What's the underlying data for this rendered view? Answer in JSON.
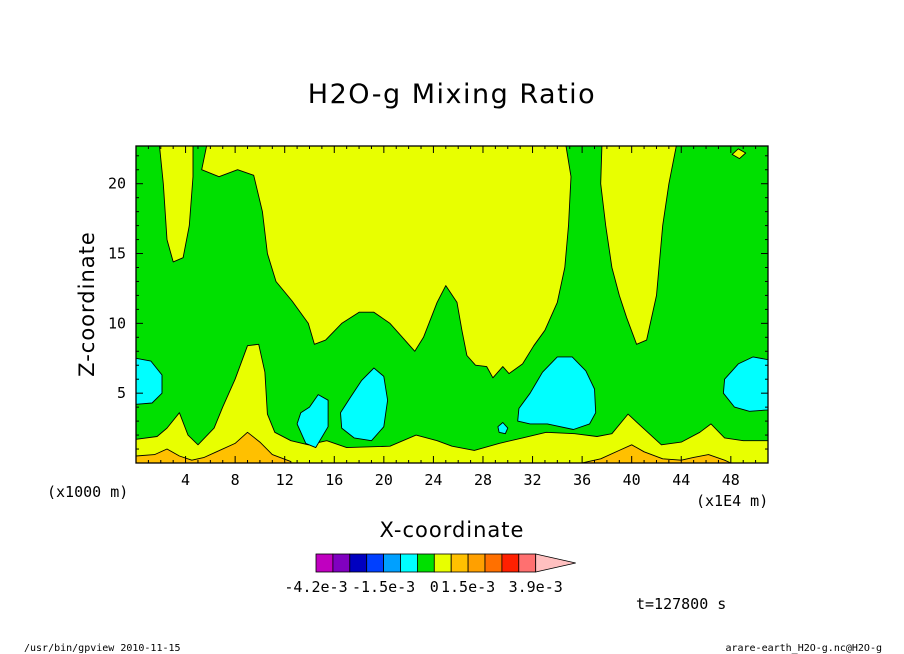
{
  "chart_data": {
    "type": "heatmap",
    "title": "H2O-g Mixing Ratio",
    "xlabel": "X-coordinate",
    "ylabel": "Z-coordinate",
    "x_unit_left": "(x1000 m)",
    "x_unit_right": "(x1E4 m)",
    "x_ticks": [
      "4",
      "8",
      "12",
      "16",
      "20",
      "24",
      "28",
      "32",
      "36",
      "40",
      "44",
      "48"
    ],
    "y_ticks": [
      "5",
      "10",
      "15",
      "20"
    ],
    "xlim": [
      0,
      51
    ],
    "ylim": [
      0,
      22.7
    ],
    "colorbar": {
      "colors": [
        "#c000c0",
        "#8000c0",
        "#0000c0",
        "#0040ff",
        "#00a0ff",
        "#00ffff",
        "#00e000",
        "#e8ff00",
        "#ffc000",
        "#ffa000",
        "#ff7000",
        "#ff2000",
        "#ff7070",
        "#ffc0c0"
      ],
      "labels": [
        "-4.2e-3",
        "-1.5e-3",
        "0",
        "1.5e-3",
        "3.9e-3"
      ],
      "label_levels": [
        -0.0042,
        -0.0015,
        0,
        0.0015,
        0.0039
      ]
    },
    "time_label": "t=127800 s",
    "level_colors": {
      "green": "#00e000",
      "yellow": "#e8ff00",
      "cyan": "#00ffff",
      "orange": "#ffc000"
    },
    "regions": [
      {
        "name": "yellow-plume-left",
        "level": "yellow",
        "points": [
          [
            1.9,
            22.7
          ],
          [
            2.2,
            20
          ],
          [
            2.5,
            16
          ],
          [
            3,
            14.4
          ],
          [
            3.8,
            14.7
          ],
          [
            4.3,
            17
          ],
          [
            4.6,
            20.5
          ],
          [
            4.6,
            22.7
          ]
        ]
      },
      {
        "name": "yellow-upper-center",
        "level": "yellow",
        "points": [
          [
            5.7,
            22.7
          ],
          [
            5.3,
            21
          ],
          [
            6.7,
            20.5
          ],
          [
            8.2,
            21
          ],
          [
            9.5,
            20.6
          ],
          [
            10.2,
            18
          ],
          [
            10.6,
            15
          ],
          [
            11.3,
            13
          ],
          [
            12.6,
            11.6
          ],
          [
            13.9,
            10
          ],
          [
            14.4,
            8.5
          ],
          [
            15.3,
            8.8
          ],
          [
            16.6,
            10
          ],
          [
            18,
            10.8
          ],
          [
            19.2,
            10.8
          ],
          [
            20.5,
            10
          ],
          [
            21.5,
            9
          ],
          [
            22.5,
            8
          ],
          [
            23.2,
            9
          ],
          [
            24.3,
            11.5
          ],
          [
            25,
            12.7
          ],
          [
            25.9,
            11.5
          ],
          [
            26.3,
            9.5
          ],
          [
            26.7,
            7.7
          ],
          [
            27.4,
            7
          ],
          [
            28.3,
            6.9
          ],
          [
            28.8,
            6.1
          ],
          [
            29.6,
            6.9
          ],
          [
            30.1,
            6.4
          ],
          [
            31.2,
            7.1
          ],
          [
            32.1,
            8.4
          ],
          [
            33,
            9.5
          ],
          [
            34,
            11.5
          ],
          [
            34.6,
            14
          ],
          [
            34.9,
            17
          ],
          [
            35.1,
            20.5
          ],
          [
            34.7,
            22.7
          ]
        ]
      },
      {
        "name": "yellow-plume-right",
        "level": "yellow",
        "points": [
          [
            37.6,
            22.7
          ],
          [
            37.5,
            20
          ],
          [
            37.9,
            17
          ],
          [
            38.4,
            14
          ],
          [
            39,
            12
          ],
          [
            39.6,
            10.4
          ],
          [
            40.4,
            8.5
          ],
          [
            41.2,
            8.8
          ],
          [
            42,
            12
          ],
          [
            42.5,
            17
          ],
          [
            43,
            20
          ],
          [
            43.6,
            22.7
          ]
        ]
      },
      {
        "name": "yellow-speck-top-right",
        "level": "yellow",
        "points": [
          [
            48.1,
            22.1
          ],
          [
            48.7,
            21.8
          ],
          [
            49.2,
            22.2
          ],
          [
            48.6,
            22.5
          ]
        ]
      },
      {
        "name": "yellow-band-bottom",
        "level": "yellow",
        "points": [
          [
            0,
            0
          ],
          [
            0,
            1.7
          ],
          [
            1.7,
            1.9
          ],
          [
            2.5,
            2.5
          ],
          [
            3.5,
            3.6
          ],
          [
            4.2,
            2
          ],
          [
            5,
            1.3
          ],
          [
            6.3,
            2.5
          ],
          [
            7,
            4
          ],
          [
            8,
            6
          ],
          [
            9,
            8.4
          ],
          [
            9.9,
            8.5
          ],
          [
            10.4,
            6.5
          ],
          [
            10.6,
            3.5
          ],
          [
            11.2,
            2.2
          ],
          [
            12.5,
            1.6
          ],
          [
            13.9,
            1.3
          ],
          [
            15.4,
            1.6
          ],
          [
            17,
            1.1
          ],
          [
            20.5,
            1.2
          ],
          [
            22.6,
            2
          ],
          [
            24.3,
            1.6
          ],
          [
            25.5,
            1.2
          ],
          [
            27.3,
            0.9
          ],
          [
            29.3,
            1.4
          ],
          [
            31.2,
            1.8
          ],
          [
            33.1,
            2.2
          ],
          [
            35.4,
            2.1
          ],
          [
            37.2,
            1.9
          ],
          [
            38.4,
            2.1
          ],
          [
            39.7,
            3.5
          ],
          [
            40.8,
            2.6
          ],
          [
            42.4,
            1.3
          ],
          [
            44,
            1.5
          ],
          [
            45.5,
            2.2
          ],
          [
            46.4,
            2.8
          ],
          [
            47.5,
            1.8
          ],
          [
            49,
            1.6
          ],
          [
            51,
            1.6
          ],
          [
            51,
            0
          ]
        ]
      },
      {
        "name": "orange-low-left",
        "level": "orange",
        "points": [
          [
            0,
            0
          ],
          [
            0,
            0.5
          ],
          [
            1.5,
            0.6
          ],
          [
            2.5,
            1
          ],
          [
            3.5,
            0.5
          ],
          [
            4.5,
            0.2
          ],
          [
            5.5,
            0.4
          ],
          [
            6.5,
            0.8
          ],
          [
            8,
            1.4
          ],
          [
            9,
            2.2
          ],
          [
            10,
            1.5
          ],
          [
            11,
            0.6
          ],
          [
            12.5,
            0.1
          ],
          [
            12.5,
            0
          ]
        ]
      },
      {
        "name": "orange-low-right",
        "level": "orange",
        "points": [
          [
            36,
            0
          ],
          [
            37.5,
            0.3
          ],
          [
            39,
            0.9
          ],
          [
            40,
            1.3
          ],
          [
            41,
            0.8
          ],
          [
            42.5,
            0.3
          ],
          [
            44,
            0.2
          ],
          [
            45,
            0.4
          ],
          [
            46.2,
            0.6
          ],
          [
            47.5,
            0.2
          ],
          [
            48,
            0
          ]
        ]
      },
      {
        "name": "cyan-left-edge",
        "level": "cyan",
        "points": [
          [
            0,
            7.5
          ],
          [
            1.2,
            7.3
          ],
          [
            2.1,
            6.3
          ],
          [
            2.1,
            5
          ],
          [
            1.3,
            4.3
          ],
          [
            0,
            4.2
          ]
        ]
      },
      {
        "name": "cyan-blob-14",
        "level": "cyan",
        "points": [
          [
            14,
            4
          ],
          [
            14.7,
            4.9
          ],
          [
            15.5,
            4.5
          ],
          [
            15.5,
            2.6
          ],
          [
            14.5,
            1.1
          ],
          [
            13.7,
            1.4
          ],
          [
            13,
            2.8
          ],
          [
            13.3,
            3.6
          ]
        ]
      },
      {
        "name": "cyan-blob-19",
        "level": "cyan",
        "points": [
          [
            16.5,
            3.6
          ],
          [
            17.3,
            4.7
          ],
          [
            18.2,
            5.9
          ],
          [
            19.2,
            6.8
          ],
          [
            20,
            6.2
          ],
          [
            20.3,
            4.5
          ],
          [
            20,
            2.6
          ],
          [
            19,
            1.6
          ],
          [
            17.6,
            1.8
          ],
          [
            16.6,
            2.5
          ]
        ]
      },
      {
        "name": "cyan-speck-29",
        "level": "cyan",
        "points": [
          [
            29.6,
            2.9
          ],
          [
            30,
            2.5
          ],
          [
            29.8,
            2.1
          ],
          [
            29.3,
            2.2
          ],
          [
            29.2,
            2.6
          ]
        ]
      },
      {
        "name": "cyan-blob-34",
        "level": "cyan",
        "points": [
          [
            30.9,
            3.9
          ],
          [
            31.8,
            5
          ],
          [
            32.8,
            6.5
          ],
          [
            34,
            7.6
          ],
          [
            35.2,
            7.6
          ],
          [
            36.3,
            6.6
          ],
          [
            37,
            5.3
          ],
          [
            37.1,
            3.6
          ],
          [
            36.6,
            2.8
          ],
          [
            35.3,
            2.4
          ],
          [
            33.2,
            2.8
          ],
          [
            31.8,
            2.8
          ],
          [
            30.8,
            3
          ]
        ]
      },
      {
        "name": "cyan-right-edge",
        "level": "cyan",
        "points": [
          [
            51,
            7.4
          ],
          [
            49.8,
            7.6
          ],
          [
            48.6,
            7.1
          ],
          [
            47.5,
            6
          ],
          [
            47.4,
            5
          ],
          [
            48.3,
            4
          ],
          [
            49.5,
            3.7
          ],
          [
            51,
            3.8
          ]
        ]
      }
    ]
  },
  "footer": {
    "left": "/usr/bin/gpview  2010-11-15",
    "right": "arare-earth_H2O-g.nc@H2O-g"
  }
}
